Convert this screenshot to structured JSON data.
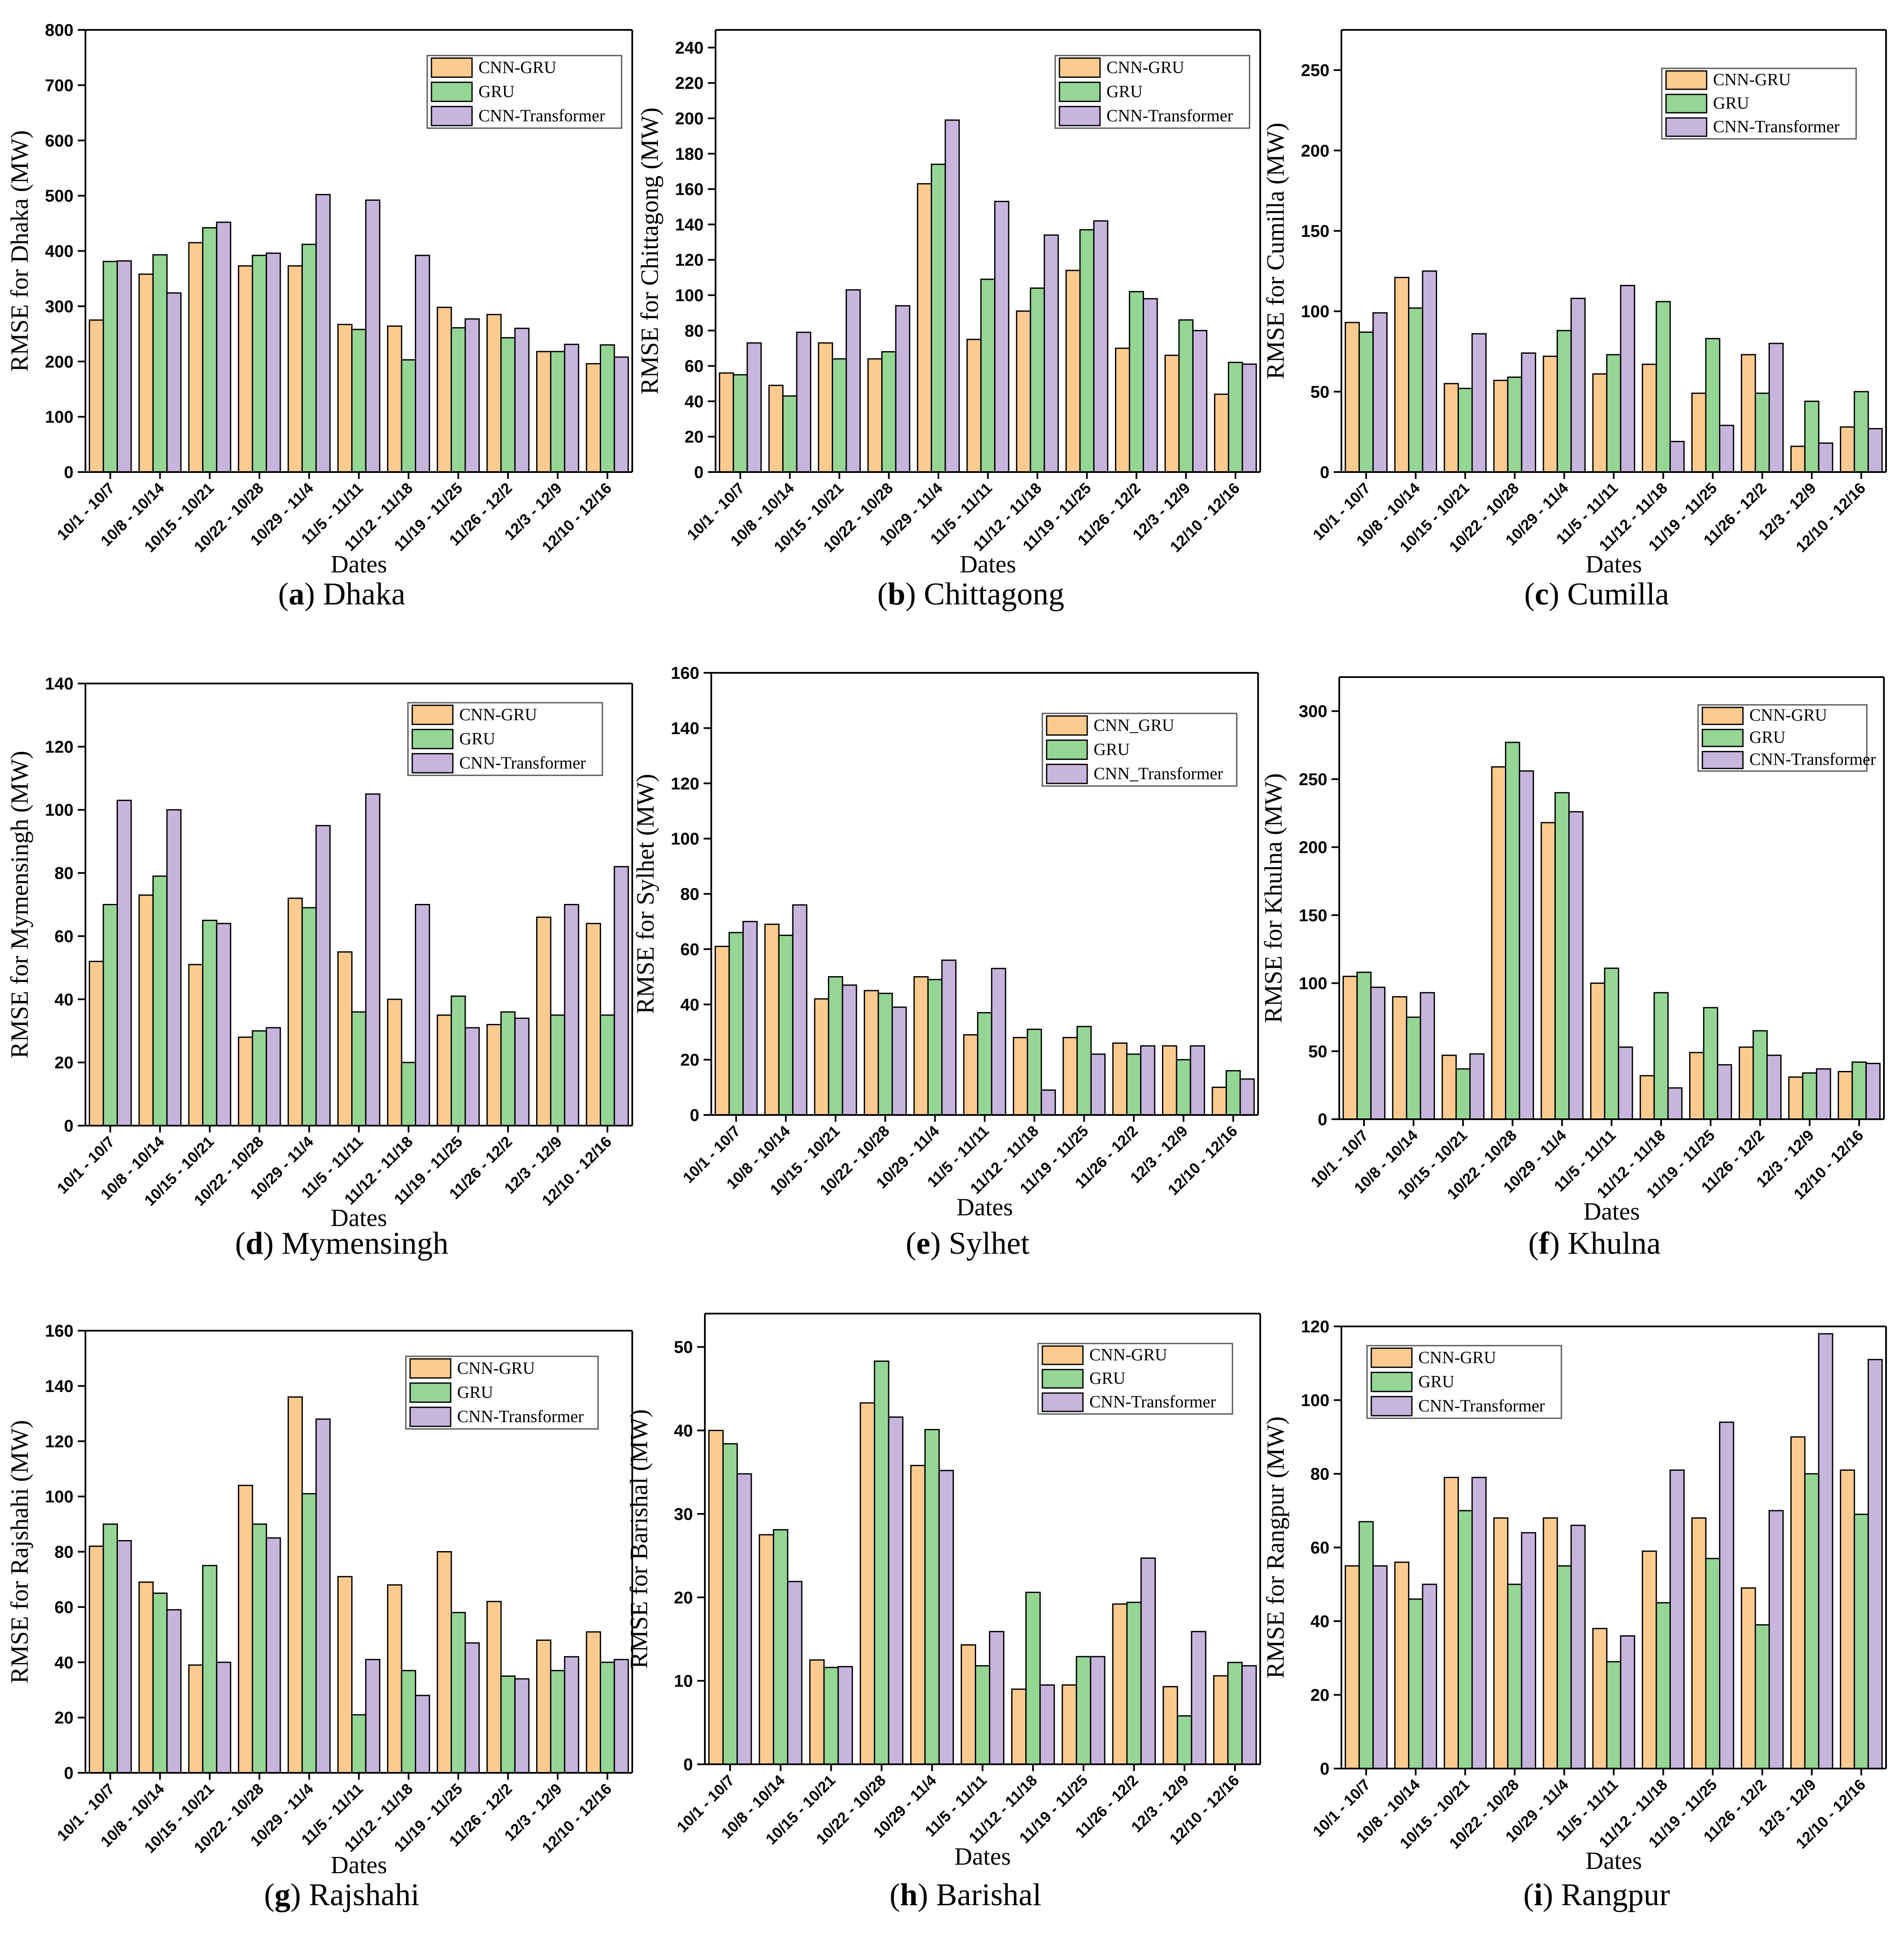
{
  "series_names": [
    "CNN-GRU",
    "GRU",
    "CNN-Transformer"
  ],
  "colors": {
    "cnn_gru": "#FDCB8F",
    "gru": "#95D695",
    "cnn_transformer": "#C7B5DD",
    "axis": "#000000"
  },
  "chart_data": [
    {
      "id": "a",
      "type": "bar",
      "caption_letter": "a",
      "caption_city": "Dhaka",
      "ylabel": "RMSE for Dhaka (MW)",
      "xlabel": "Dates",
      "categories": [
        "10/1 - 10/7",
        "10/8 - 10/14",
        "10/15 - 10/21",
        "10/22 - 10/28",
        "10/29 - 11/4",
        "11/5 - 11/11",
        "11/12 - 11/18",
        "11/19 - 11/25",
        "11/26 - 12/2",
        "12/3 - 12/9",
        "12/10 - 12/16"
      ],
      "ylim": [
        0,
        800
      ],
      "yticks": [
        0,
        100,
        200,
        300,
        400,
        500,
        600,
        700,
        800
      ],
      "tick_labels": [
        "0",
        "100",
        "200",
        "300",
        "400",
        "500",
        "600",
        "700",
        "800"
      ],
      "legend_labels": [
        "CNN-GRU",
        "GRU",
        "CNN-Transformer"
      ],
      "legend_position": "top-right",
      "series": [
        {
          "name": "CNN-GRU",
          "values": [
            275,
            358,
            415,
            373,
            373,
            267,
            264,
            298,
            285,
            218,
            196
          ]
        },
        {
          "name": "GRU",
          "values": [
            381,
            393,
            442,
            392,
            412,
            258,
            203,
            261,
            243,
            218,
            230
          ]
        },
        {
          "name": "CNN-Transformer",
          "values": [
            382,
            324,
            452,
            396,
            502,
            492,
            392,
            277,
            260,
            231,
            208
          ]
        }
      ]
    },
    {
      "id": "b",
      "type": "bar",
      "caption_letter": "b",
      "caption_city": "Chittagong",
      "ylabel": "RMSE for Chittagong (MW)",
      "xlabel": "Dates",
      "categories": [
        "10/1 - 10/7",
        "10/8 - 10/14",
        "10/15 - 10/21",
        "10/22 - 10/28",
        "10/29 - 11/4",
        "11/5 - 11/11",
        "11/12 - 11/18",
        "11/19 - 11/25",
        "11/26 - 12/2",
        "12/3 - 12/9",
        "12/10 - 12/16"
      ],
      "ylim": [
        0,
        250
      ],
      "yticks": [
        0,
        20,
        40,
        60,
        80,
        100,
        120,
        140,
        160,
        180,
        200,
        220,
        240
      ],
      "tick_labels": [
        "0",
        "20",
        "40",
        "60",
        "80",
        "100",
        "120",
        "140",
        "160",
        "180",
        "200",
        "220",
        "240"
      ],
      "legend_labels": [
        "CNN-GRU",
        "GRU",
        "CNN-Transformer"
      ],
      "legend_position": "top-right",
      "series": [
        {
          "name": "CNN-GRU",
          "values": [
            56,
            49,
            73,
            64,
            163,
            75,
            91,
            114,
            70,
            66,
            44
          ]
        },
        {
          "name": "GRU",
          "values": [
            55,
            43,
            64,
            68,
            174,
            109,
            104,
            137,
            102,
            86,
            62
          ]
        },
        {
          "name": "CNN-Transformer",
          "values": [
            73,
            79,
            103,
            94,
            199,
            153,
            134,
            142,
            98,
            80,
            61
          ]
        }
      ]
    },
    {
      "id": "c",
      "type": "bar",
      "caption_letter": "c",
      "caption_city": "Cumilla",
      "ylabel": "RMSE for Cumilla (MW)",
      "xlabel": "Dates",
      "categories": [
        "10/1 - 10/7",
        "10/8 - 10/14",
        "10/15 - 10/21",
        "10/22 - 10/28",
        "10/29 - 11/4",
        "11/5 - 11/11",
        "11/12 - 11/18",
        "11/19 - 11/25",
        "11/26 - 12/2",
        "12/3 - 12/9",
        "12/10 - 12/16"
      ],
      "ylim": [
        0,
        275
      ],
      "yticks": [
        0,
        50,
        100,
        150,
        200,
        250
      ],
      "tick_labels": [
        "0",
        "50",
        "100",
        "150",
        "200",
        "250"
      ],
      "legend_labels": [
        "CNN-GRU",
        "GRU",
        "CNN-Transformer"
      ],
      "legend_position": "top-right",
      "series": [
        {
          "name": "CNN-GRU",
          "values": [
            93,
            121,
            55,
            57,
            72,
            61,
            67,
            49,
            73,
            16,
            28
          ]
        },
        {
          "name": "GRU",
          "values": [
            87,
            102,
            52,
            59,
            88,
            73,
            106,
            83,
            49,
            44,
            50
          ]
        },
        {
          "name": "CNN-Transformer",
          "values": [
            99,
            125,
            86,
            74,
            108,
            116,
            19,
            29,
            80,
            18,
            27
          ]
        }
      ]
    },
    {
      "id": "d",
      "type": "bar",
      "caption_letter": "d",
      "caption_city": "Mymensingh",
      "ylabel": "RMSE for Mymensingh (MW)",
      "xlabel": "Dates",
      "categories": [
        "10/1 - 10/7",
        "10/8 - 10/14",
        "10/15 - 10/21",
        "10/22 - 10/28",
        "10/29 - 11/4",
        "11/5 - 11/11",
        "11/12 - 11/18",
        "11/19 - 11/25",
        "11/26 - 12/2",
        "12/3 - 12/9",
        "12/10 - 12/16"
      ],
      "ylim": [
        0,
        140
      ],
      "yticks": [
        0,
        20,
        40,
        60,
        80,
        100,
        120,
        140
      ],
      "tick_labels": [
        "0",
        "20",
        "40",
        "60",
        "80",
        "100",
        "120",
        "140"
      ],
      "legend_labels": [
        "CNN-GRU",
        "GRU",
        "CNN-Transformer"
      ],
      "legend_position": "top-right",
      "series": [
        {
          "name": "CNN-GRU",
          "values": [
            52,
            73,
            51,
            28,
            72,
            55,
            40,
            35,
            32,
            66,
            64
          ]
        },
        {
          "name": "GRU",
          "values": [
            70,
            79,
            65,
            30,
            69,
            36,
            20,
            41,
            36,
            35,
            35
          ]
        },
        {
          "name": "CNN-Transformer",
          "values": [
            103,
            100,
            64,
            31,
            95,
            105,
            70,
            31,
            34,
            70,
            82
          ]
        }
      ]
    },
    {
      "id": "e",
      "type": "bar",
      "caption_letter": "e",
      "caption_city": "Sylhet",
      "ylabel": "RMSE for Sylhet (MW)",
      "xlabel": "Dates",
      "categories": [
        "10/1 - 10/7",
        "10/8 - 10/14",
        "10/15 - 10/21",
        "10/22 - 10/28",
        "10/29 - 11/4",
        "11/5 - 11/11",
        "11/12 - 11/18",
        "11/19 - 11/25",
        "11/26 - 12/2",
        "12/3 - 12/9",
        "12/10 - 12/16"
      ],
      "ylim": [
        0,
        160
      ],
      "yticks": [
        0,
        20,
        40,
        60,
        80,
        100,
        120,
        140,
        160
      ],
      "tick_labels": [
        "0",
        "20",
        "40",
        "60",
        "80",
        "100",
        "120",
        "140",
        "160"
      ],
      "legend_labels": [
        "CNN_GRU",
        "GRU",
        "CNN_Transformer"
      ],
      "legend_position": "top-right",
      "series": [
        {
          "name": "CNN_GRU",
          "values": [
            61,
            69,
            42,
            45,
            50,
            29,
            28,
            28,
            26,
            25,
            10
          ]
        },
        {
          "name": "GRU",
          "values": [
            66,
            65,
            50,
            44,
            49,
            37,
            31,
            32,
            22,
            20,
            16
          ]
        },
        {
          "name": "CNN_Transformer",
          "values": [
            70,
            76,
            47,
            39,
            56,
            53,
            9,
            22,
            25,
            25,
            13
          ]
        }
      ]
    },
    {
      "id": "f",
      "type": "bar",
      "caption_letter": "f",
      "caption_city": "Khulna",
      "ylabel": "RMSE for Khulna (MW)",
      "xlabel": "Dates",
      "categories": [
        "10/1 - 10/7",
        "10/8 - 10/14",
        "10/15 - 10/21",
        "10/22 - 10/28",
        "10/29 - 11/4",
        "11/5 - 11/11",
        "11/12 - 11/18",
        "11/19 - 11/25",
        "11/26 - 12/2",
        "12/3 - 12/9",
        "12/10 - 12/16"
      ],
      "ylim": [
        0,
        325
      ],
      "yticks": [
        0,
        50,
        100,
        150,
        200,
        250,
        300
      ],
      "tick_labels": [
        "0",
        "50",
        "100",
        "150",
        "200",
        "250",
        "300"
      ],
      "legend_labels": [
        "CNN-GRU",
        "GRU",
        "CNN-Transformer"
      ],
      "legend_position": "top-right",
      "series": [
        {
          "name": "CNN-GRU",
          "values": [
            105,
            90,
            47,
            259,
            218,
            100,
            32,
            49,
            53,
            31,
            35
          ]
        },
        {
          "name": "GRU",
          "values": [
            108,
            75,
            37,
            277,
            240,
            111,
            93,
            82,
            65,
            34,
            42
          ]
        },
        {
          "name": "CNN-Transformer",
          "values": [
            97,
            93,
            48,
            256,
            226,
            53,
            23,
            40,
            47,
            37,
            41
          ]
        }
      ]
    },
    {
      "id": "g",
      "type": "bar",
      "caption_letter": "g",
      "caption_city": "Rajshahi",
      "ylabel": "RMSE for Rajshahi (MW)",
      "xlabel": "Dates",
      "categories": [
        "10/1 - 10/7",
        "10/8 - 10/14",
        "10/15 - 10/21",
        "10/22 - 10/28",
        "10/29 - 11/4",
        "11/5 - 11/11",
        "11/12 - 11/18",
        "11/19 - 11/25",
        "11/26 - 12/2",
        "12/3 - 12/9",
        "12/10 - 12/16"
      ],
      "ylim": [
        0,
        160
      ],
      "yticks": [
        0,
        20,
        40,
        60,
        80,
        100,
        120,
        140,
        160
      ],
      "tick_labels": [
        "0",
        "20",
        "40",
        "60",
        "80",
        "100",
        "120",
        "140",
        "160"
      ],
      "legend_labels": [
        "CNN-GRU",
        "GRU",
        "CNN-Transformer"
      ],
      "legend_position": "top-right",
      "series": [
        {
          "name": "CNN-GRU",
          "values": [
            82,
            69,
            39,
            104,
            136,
            71,
            68,
            80,
            62,
            48,
            51
          ]
        },
        {
          "name": "GRU",
          "values": [
            90,
            65,
            75,
            90,
            101,
            21,
            37,
            58,
            35,
            37,
            40
          ]
        },
        {
          "name": "CNN-Transformer",
          "values": [
            84,
            59,
            40,
            85,
            128,
            41,
            28,
            47,
            34,
            42,
            41
          ]
        }
      ]
    },
    {
      "id": "h",
      "type": "bar",
      "caption_letter": "h",
      "caption_city": "Barishal",
      "ylabel": "RMSE for Barishal (MW)",
      "xlabel": "Dates",
      "categories": [
        "10/1 - 10/7",
        "10/8 - 10/14",
        "10/15 - 10/21",
        "10/22 - 10/28",
        "10/29 - 11/4",
        "11/5 - 11/11",
        "11/12 - 11/18",
        "11/19 - 11/25",
        "11/26 - 12/2",
        "12/3 - 12/9",
        "12/10 - 12/16"
      ],
      "ylim": [
        0,
        54
      ],
      "yticks": [
        0,
        10,
        20,
        30,
        40,
        50
      ],
      "tick_labels": [
        "0",
        "10",
        "20",
        "30",
        "40",
        "50"
      ],
      "legend_labels": [
        "CNN-GRU",
        "GRU",
        "CNN-Transformer"
      ],
      "legend_position": "top-right",
      "series": [
        {
          "name": "CNN-GRU",
          "values": [
            40,
            27.5,
            12.5,
            43.3,
            35.8,
            14.3,
            9,
            9.5,
            19.2,
            9.3,
            10.6
          ]
        },
        {
          "name": "GRU",
          "values": [
            38.4,
            28.1,
            11.6,
            48.3,
            40.1,
            11.8,
            20.6,
            12.9,
            19.4,
            5.8,
            12.2
          ]
        },
        {
          "name": "CNN-Transformer",
          "values": [
            34.8,
            21.9,
            11.7,
            41.6,
            35.2,
            15.9,
            9.5,
            12.9,
            24.7,
            15.9,
            11.8
          ]
        }
      ]
    },
    {
      "id": "i",
      "type": "bar",
      "caption_letter": "i",
      "caption_city": "Rangpur",
      "ylabel": "RMSE for Rangpur (MW)",
      "xlabel": "Dates",
      "categories": [
        "10/1 - 10/7",
        "10/8 - 10/14",
        "10/15 - 10/21",
        "10/22 - 10/28",
        "10/29 - 11/4",
        "11/5 - 11/11",
        "11/12 - 11/18",
        "11/19 - 11/25",
        "11/26 - 12/2",
        "12/3 - 12/9",
        "12/10 - 12/16"
      ],
      "ylim": [
        0,
        120
      ],
      "yticks": [
        0,
        20,
        40,
        60,
        80,
        100,
        120
      ],
      "tick_labels": [
        "0",
        "20",
        "40",
        "60",
        "80",
        "100",
        "120"
      ],
      "legend_labels": [
        "CNN-GRU",
        "GRU",
        "CNN-Transformer"
      ],
      "legend_position": "top-left",
      "series": [
        {
          "name": "CNN-GRU",
          "values": [
            55,
            56,
            79,
            68,
            68,
            38,
            59,
            68,
            49,
            90,
            81
          ]
        },
        {
          "name": "GRU",
          "values": [
            67,
            46,
            70,
            50,
            55,
            29,
            45,
            57,
            39,
            80,
            69
          ]
        },
        {
          "name": "CNN-Transformer",
          "values": [
            55,
            50,
            79,
            64,
            66,
            36,
            81,
            94,
            70,
            118,
            111
          ]
        }
      ]
    }
  ]
}
